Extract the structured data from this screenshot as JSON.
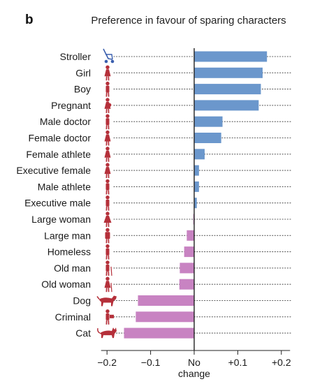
{
  "panel_label": "b",
  "chart_data": {
    "type": "bar",
    "orientation": "horizontal",
    "title": "Preference in favour of sparing characters",
    "categories": [
      "Stroller",
      "Girl",
      "Boy",
      "Pregnant",
      "Male doctor",
      "Female doctor",
      "Female athlete",
      "Executive female",
      "Male athlete",
      "Executive male",
      "Large woman",
      "Large man",
      "Homeless",
      "Old man",
      "Old woman",
      "Dog",
      "Criminal",
      "Cat"
    ],
    "values": [
      0.167,
      0.157,
      0.153,
      0.148,
      0.065,
      0.062,
      0.024,
      0.011,
      0.011,
      0.006,
      -0.002,
      -0.017,
      -0.023,
      -0.033,
      -0.034,
      -0.129,
      -0.134,
      -0.161
    ],
    "icons": [
      "stroller-icon",
      "girl-icon",
      "boy-icon",
      "pregnant-icon",
      "male-doctor-icon",
      "female-doctor-icon",
      "female-athlete-icon",
      "executive-female-icon",
      "male-athlete-icon",
      "executive-male-icon",
      "large-woman-icon",
      "large-man-icon",
      "homeless-icon",
      "old-man-icon",
      "old-woman-icon",
      "dog-icon",
      "criminal-icon",
      "cat-icon"
    ],
    "xlim": [
      -0.22,
      0.22
    ],
    "xticks": [
      {
        "value": -0.2,
        "label": "−0.2"
      },
      {
        "value": -0.1,
        "label": "−0.1"
      },
      {
        "value": 0,
        "label": "No"
      },
      {
        "value": 0.1,
        "label": "+0.1"
      },
      {
        "value": 0.2,
        "label": "+0.2"
      }
    ],
    "zero_sublabel": "change",
    "colors": {
      "positive": "#6b97cc",
      "negative": "#c883c2",
      "human_icon": "#b5303a",
      "stroller_icon": "#3a5fae",
      "dots": "#555555",
      "axis": "#222222"
    },
    "grid": false,
    "legend": "none"
  }
}
